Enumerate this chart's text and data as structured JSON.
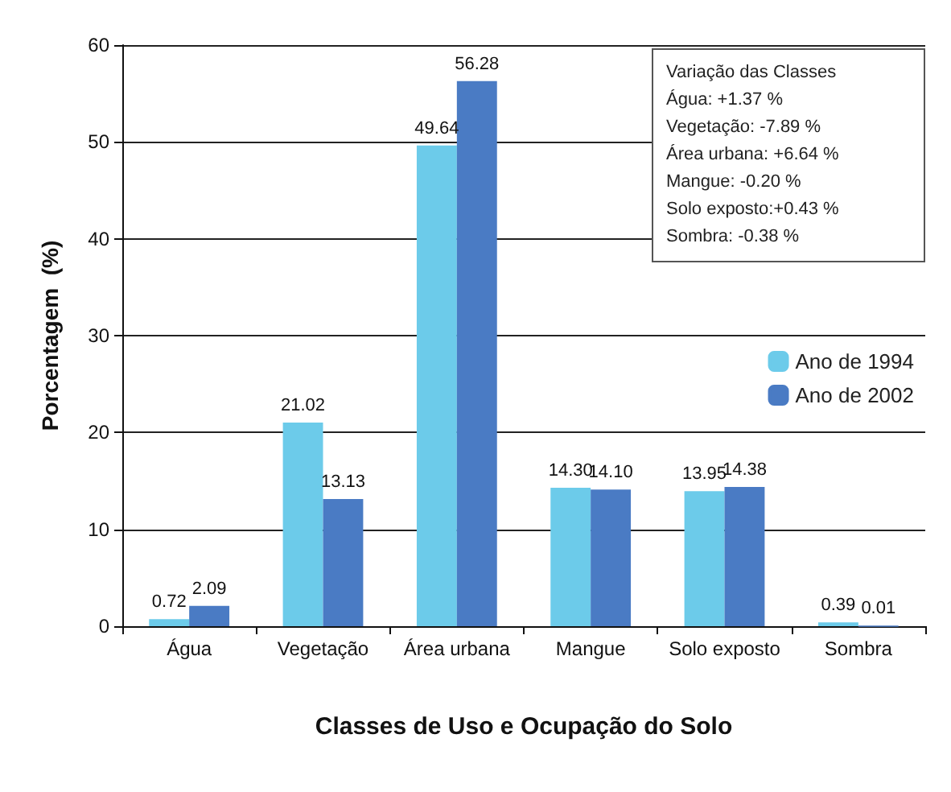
{
  "chart_data": {
    "type": "bar",
    "xlabel": "Classes de Uso e Ocupação do Solo",
    "ylabel": "Porcentagem  (%)",
    "categories": [
      "Água",
      "Vegetação",
      "Área urbana",
      "Mangue",
      "Solo exposto",
      "Sombra"
    ],
    "series": [
      {
        "name": "Ano de 1994",
        "color": "#6ccbea",
        "values": [
          0.72,
          21.02,
          49.64,
          14.3,
          13.95,
          0.39
        ],
        "value_labels": [
          "0.72",
          "21.02",
          "49.64",
          "14.30",
          "13.95",
          "0.39"
        ]
      },
      {
        "name": "Ano de 2002",
        "color": "#4a7bc4",
        "values": [
          2.09,
          13.13,
          56.28,
          14.1,
          14.38,
          0.01
        ],
        "value_labels": [
          "2.09",
          "13.13",
          "56.28",
          "14.10",
          "14.38",
          "0.01"
        ]
      }
    ],
    "ylim": [
      0,
      60
    ],
    "yticks": [
      0,
      10,
      20,
      30,
      40,
      50,
      60
    ],
    "grid": "y",
    "legend": "right",
    "annotations": [
      "Variação das Classes",
      "Água: +1.37 %",
      "Vegetação: -7.89 %",
      "Área urbana: +6.64 %",
      "Mangue: -0.20 %",
      "Solo exposto:+0.43 %",
      "Sombra: -0.38 %"
    ]
  }
}
